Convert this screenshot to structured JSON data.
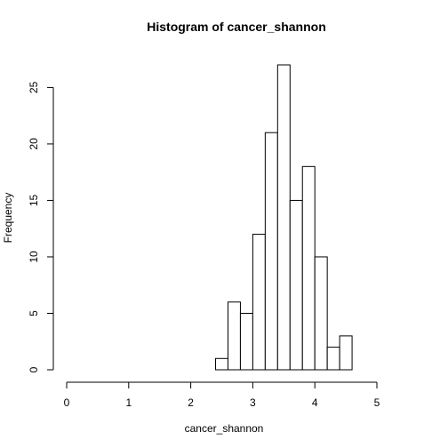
{
  "chart_data": {
    "type": "bar",
    "title": "Histogram of cancer_shannon",
    "xlabel": "cancer_shannon",
    "ylabel": "Frequency",
    "xlim": [
      0,
      5
    ],
    "ylim": [
      0,
      27
    ],
    "x_ticks": [
      "0",
      "1",
      "2",
      "3",
      "4",
      "5"
    ],
    "y_ticks": [
      "0",
      "5",
      "10",
      "15",
      "20",
      "25"
    ],
    "bin_width": 0.2,
    "bins": [
      {
        "start": 2.4,
        "end": 2.6,
        "count": 1
      },
      {
        "start": 2.6,
        "end": 2.8,
        "count": 6
      },
      {
        "start": 2.8,
        "end": 3.0,
        "count": 5
      },
      {
        "start": 3.0,
        "end": 3.2,
        "count": 12
      },
      {
        "start": 3.2,
        "end": 3.4,
        "count": 21
      },
      {
        "start": 3.4,
        "end": 3.6,
        "count": 27
      },
      {
        "start": 3.6,
        "end": 3.8,
        "count": 15
      },
      {
        "start": 3.8,
        "end": 4.0,
        "count": 18
      },
      {
        "start": 4.0,
        "end": 4.2,
        "count": 10
      },
      {
        "start": 4.2,
        "end": 4.4,
        "count": 2
      },
      {
        "start": 4.4,
        "end": 4.6,
        "count": 3
      }
    ],
    "grid": false,
    "legend": "none"
  }
}
